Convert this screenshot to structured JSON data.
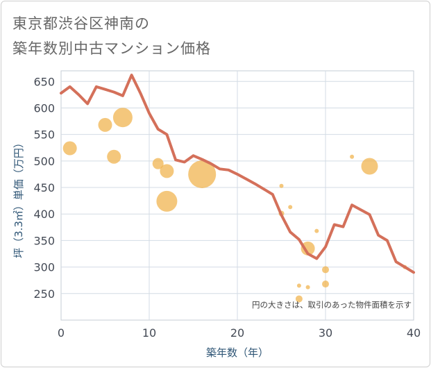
{
  "chart_data": {
    "type": "scatter",
    "title_lines": [
      "東京都渋谷区神南の",
      "築年数別中古マンション価格"
    ],
    "xlabel": "築年数（年）",
    "ylabel": "坪（3.3㎡）単価（万円）",
    "note": "円の大きさは、取引のあった物件面積を示す",
    "xlim": [
      0,
      40
    ],
    "ylim": [
      200,
      670
    ],
    "x_ticks": [
      "0",
      "10",
      "20",
      "30",
      "40"
    ],
    "y_ticks": [
      "250",
      "300",
      "350",
      "400",
      "450",
      "500",
      "550",
      "600",
      "650"
    ],
    "grid": true,
    "colors": {
      "line": "#d4705a",
      "bubble": "#f0b24a"
    },
    "series": [
      {
        "kind": "line",
        "x": [
          0,
          1,
          2,
          3,
          4,
          5,
          6,
          7,
          8,
          9,
          10,
          11,
          12,
          13,
          14,
          15,
          16,
          17,
          18,
          19,
          20,
          21,
          22,
          23,
          24,
          25,
          26,
          27,
          28,
          29,
          30,
          31,
          32,
          33,
          34,
          35,
          36,
          37,
          38,
          39,
          40
        ],
        "y": [
          628,
          640,
          625,
          608,
          640,
          635,
          630,
          623,
          662,
          628,
          590,
          560,
          550,
          502,
          498,
          510,
          503,
          495,
          485,
          483,
          475,
          466,
          457,
          447,
          437,
          398,
          366,
          352,
          325,
          316,
          338,
          380,
          376,
          417,
          408,
          399,
          360,
          350,
          310,
          300,
          290
        ]
      },
      {
        "kind": "bubble",
        "points": [
          {
            "x": 1,
            "y": 524,
            "r": 10
          },
          {
            "x": 5,
            "y": 568,
            "r": 10
          },
          {
            "x": 6,
            "y": 508,
            "r": 10
          },
          {
            "x": 7,
            "y": 582,
            "r": 14
          },
          {
            "x": 11,
            "y": 495,
            "r": 8
          },
          {
            "x": 12,
            "y": 481,
            "r": 10
          },
          {
            "x": 12,
            "y": 424,
            "r": 15
          },
          {
            "x": 16,
            "y": 475,
            "r": 20
          },
          {
            "x": 25,
            "y": 453,
            "r": 3
          },
          {
            "x": 25,
            "y": 401,
            "r": 4
          },
          {
            "x": 26,
            "y": 413,
            "r": 3
          },
          {
            "x": 27,
            "y": 265,
            "r": 3
          },
          {
            "x": 27,
            "y": 240,
            "r": 5
          },
          {
            "x": 28,
            "y": 335,
            "r": 10
          },
          {
            "x": 28,
            "y": 262,
            "r": 3
          },
          {
            "x": 29,
            "y": 368,
            "r": 3
          },
          {
            "x": 30,
            "y": 295,
            "r": 5
          },
          {
            "x": 30,
            "y": 268,
            "r": 5
          },
          {
            "x": 33,
            "y": 508,
            "r": 3
          },
          {
            "x": 35,
            "y": 490,
            "r": 12
          },
          {
            "x": 39,
            "y": 300,
            "r": 3
          }
        ]
      }
    ]
  }
}
